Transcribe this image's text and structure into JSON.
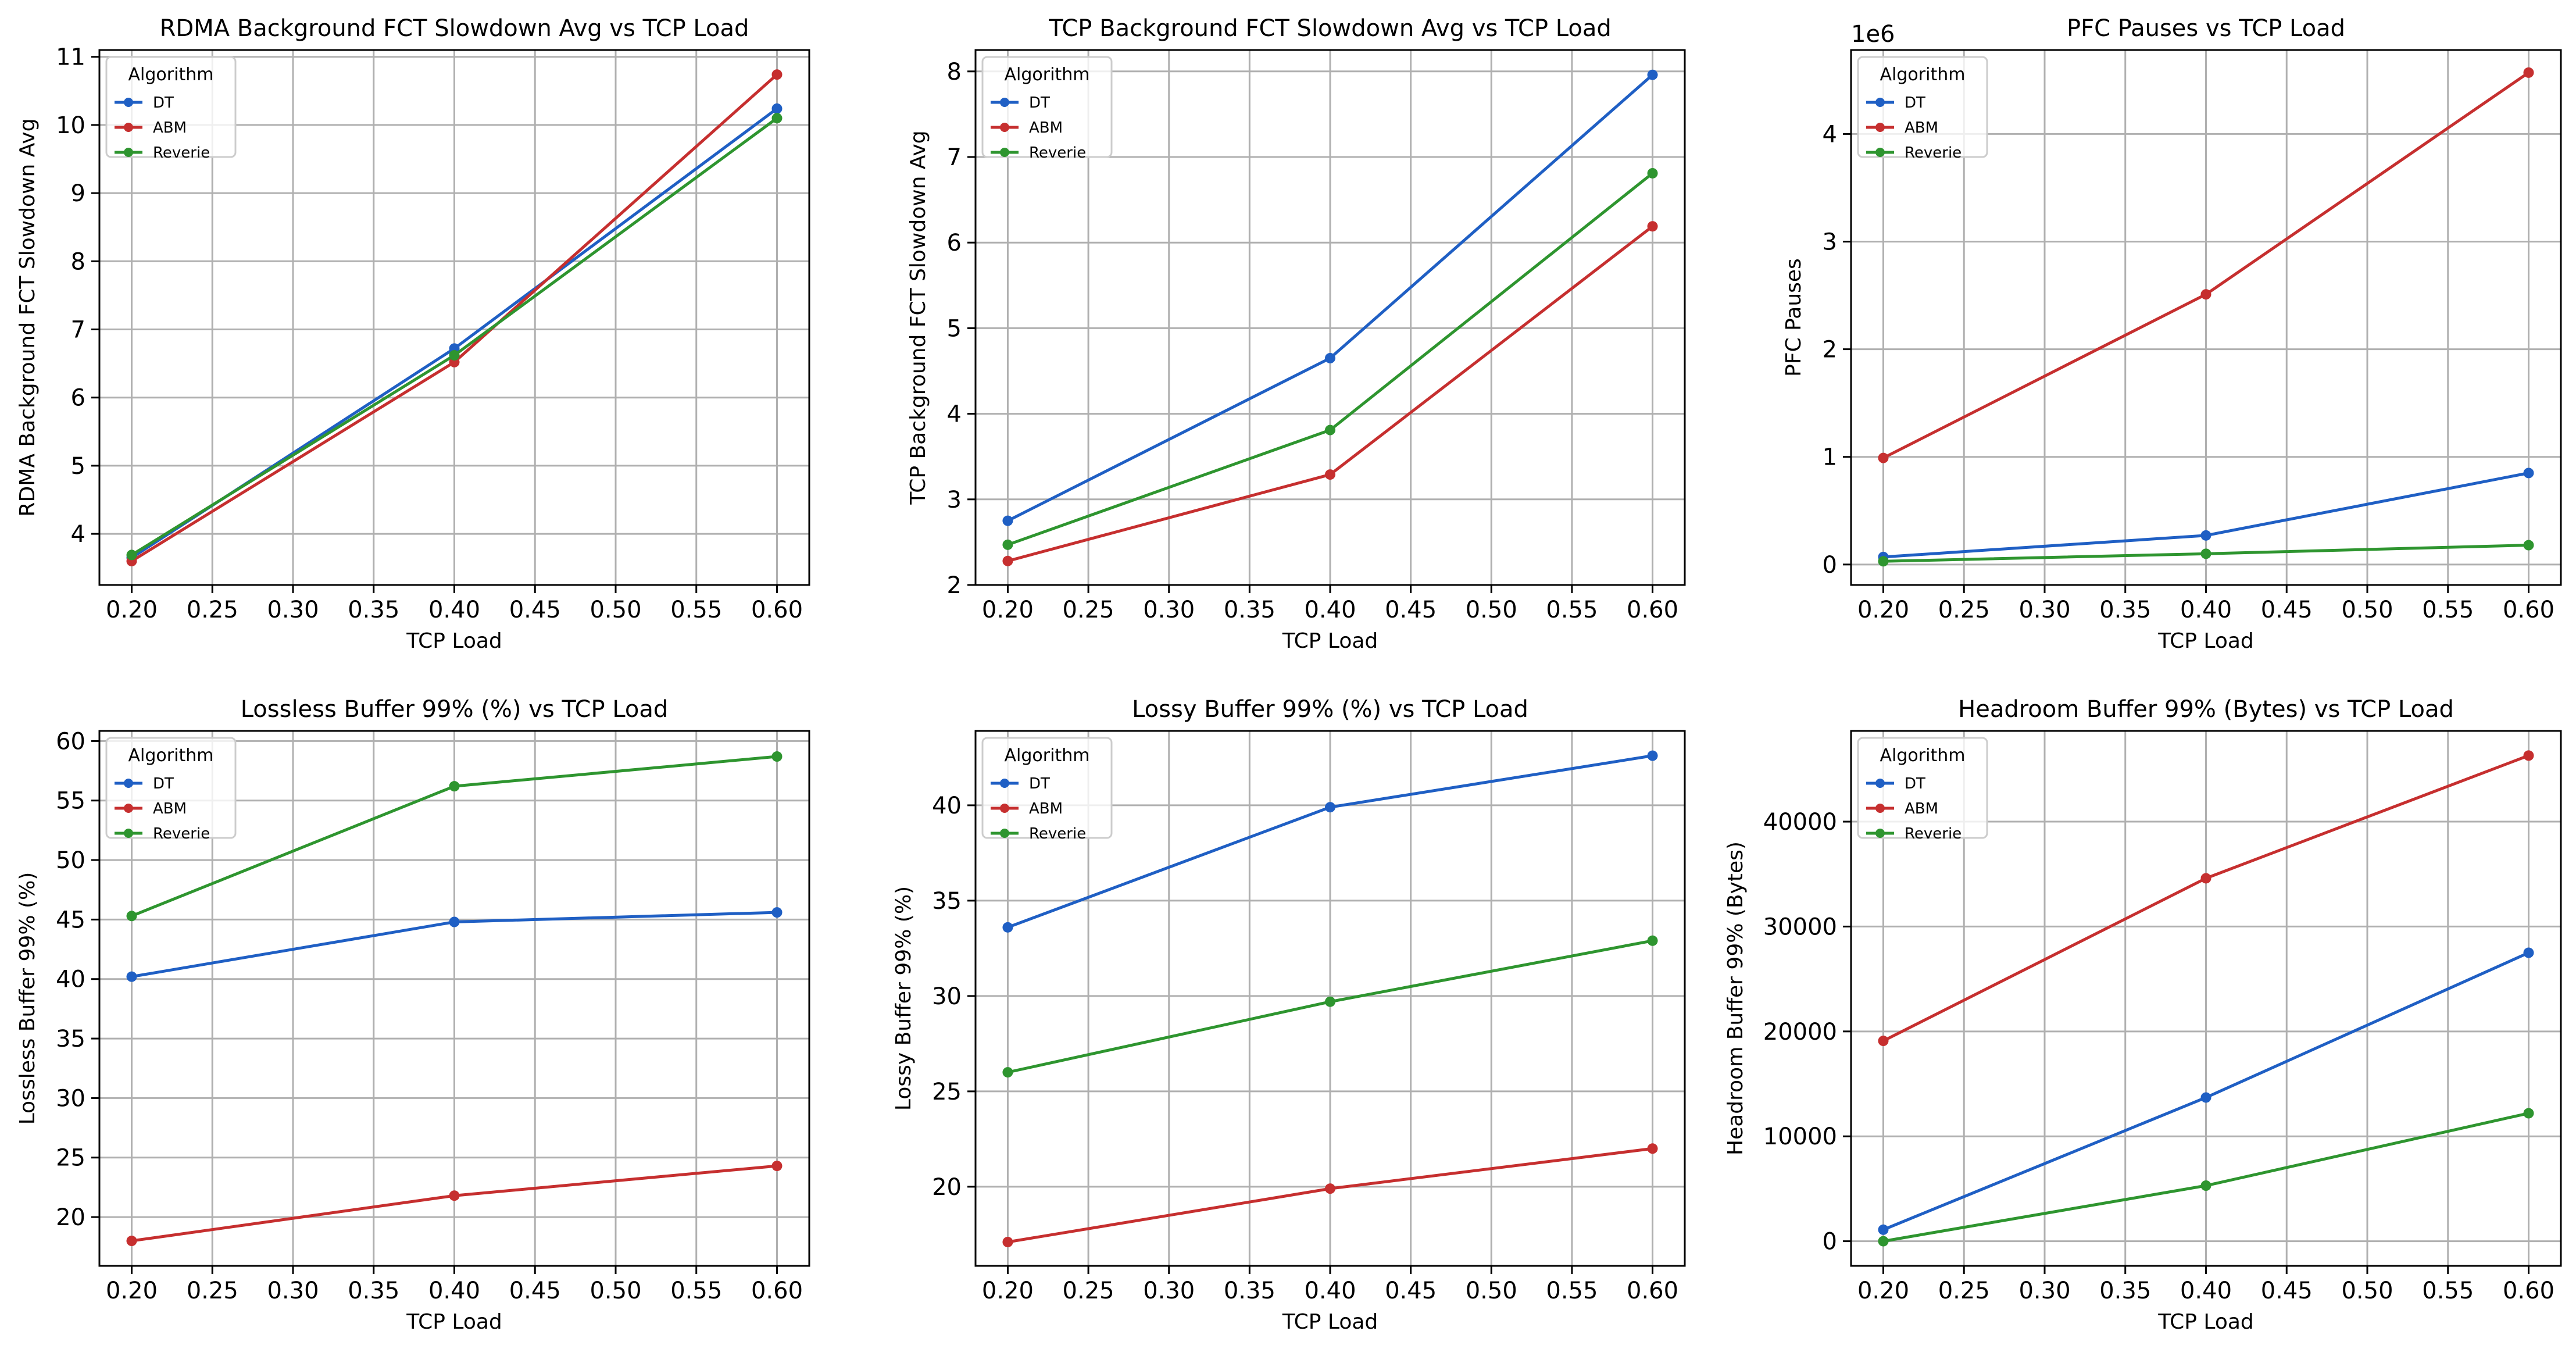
{
  "colors": {
    "DT": "#1f5fc4",
    "ABM": "#c62f2f",
    "Reverie": "#2e952f"
  },
  "chart_data": [
    {
      "type": "line",
      "title": "RDMA Background FCT Slowdown Avg vs TCP Load",
      "xlabel": "TCP Load",
      "ylabel": "RDMA Background FCT Slowdown Avg",
      "x": [
        0.2,
        0.4,
        0.6
      ],
      "xlim": [
        0.18,
        0.62
      ],
      "ylim": [
        3.25,
        11.1
      ],
      "xticks": [
        "0.20",
        "0.25",
        "0.30",
        "0.35",
        "0.40",
        "0.45",
        "0.50",
        "0.55",
        "0.60"
      ],
      "yticks": [
        "4",
        "5",
        "6",
        "7",
        "8",
        "9",
        "10",
        "11"
      ],
      "offset_text": "",
      "grid": true,
      "legend": {
        "title": "Algorithm",
        "loc": "upper left"
      },
      "series": [
        {
          "name": "DT",
          "values": [
            3.65,
            6.72,
            10.24
          ]
        },
        {
          "name": "ABM",
          "values": [
            3.6,
            6.52,
            10.74
          ]
        },
        {
          "name": "Reverie",
          "values": [
            3.69,
            6.62,
            10.1
          ]
        }
      ]
    },
    {
      "type": "line",
      "title": "TCP Background FCT Slowdown Avg vs TCP Load",
      "xlabel": "TCP Load",
      "ylabel": "TCP Background FCT Slowdown Avg",
      "x": [
        0.2,
        0.4,
        0.6
      ],
      "xlim": [
        0.18,
        0.62
      ],
      "ylim": [
        2.0,
        8.25
      ],
      "xticks": [
        "0.20",
        "0.25",
        "0.30",
        "0.35",
        "0.40",
        "0.45",
        "0.50",
        "0.55",
        "0.60"
      ],
      "yticks": [
        "2",
        "3",
        "4",
        "5",
        "6",
        "7",
        "8"
      ],
      "offset_text": "",
      "grid": true,
      "legend": {
        "title": "Algorithm",
        "loc": "upper left"
      },
      "series": [
        {
          "name": "DT",
          "values": [
            2.75,
            4.65,
            7.96
          ]
        },
        {
          "name": "ABM",
          "values": [
            2.28,
            3.29,
            6.19
          ]
        },
        {
          "name": "Reverie",
          "values": [
            2.47,
            3.81,
            6.81
          ]
        }
      ]
    },
    {
      "type": "line",
      "title": "PFC Pauses vs TCP Load",
      "xlabel": "TCP Load",
      "ylabel": "PFC Pauses",
      "x": [
        0.2,
        0.4,
        0.6
      ],
      "xlim": [
        0.18,
        0.62
      ],
      "ylim": [
        -190000,
        4780000
      ],
      "xticks": [
        "0.20",
        "0.25",
        "0.30",
        "0.35",
        "0.40",
        "0.45",
        "0.50",
        "0.55",
        "0.60"
      ],
      "yticks": [
        "0",
        "1",
        "2",
        "3",
        "4"
      ],
      "ytick_scale": 1000000,
      "offset_text": "1e6",
      "grid": true,
      "legend": {
        "title": "Algorithm",
        "loc": "upper left"
      },
      "series": [
        {
          "name": "DT",
          "values": [
            70000,
            270000,
            850000
          ]
        },
        {
          "name": "ABM",
          "values": [
            990000,
            2510000,
            4570000
          ]
        },
        {
          "name": "Reverie",
          "values": [
            30000,
            100000,
            180000
          ]
        }
      ]
    },
    {
      "type": "line",
      "title": "Lossless Buffer 99% (%) vs TCP Load",
      "xlabel": "TCP Load",
      "ylabel": "Lossless Buffer 99% (%)",
      "x": [
        0.2,
        0.4,
        0.6
      ],
      "xlim": [
        0.18,
        0.62
      ],
      "ylim": [
        15.9,
        60.85
      ],
      "xticks": [
        "0.20",
        "0.25",
        "0.30",
        "0.35",
        "0.40",
        "0.45",
        "0.50",
        "0.55",
        "0.60"
      ],
      "yticks": [
        "20",
        "25",
        "30",
        "35",
        "40",
        "45",
        "50",
        "55",
        "60"
      ],
      "offset_text": "",
      "grid": true,
      "legend": {
        "title": "Algorithm",
        "loc": "upper left"
      },
      "series": [
        {
          "name": "DT",
          "values": [
            40.2,
            44.8,
            45.6
          ]
        },
        {
          "name": "ABM",
          "values": [
            18.0,
            21.8,
            24.3
          ]
        },
        {
          "name": "Reverie",
          "values": [
            45.3,
            56.2,
            58.7
          ]
        }
      ]
    },
    {
      "type": "line",
      "title": "Lossy Buffer 99% (%) vs TCP Load",
      "xlabel": "TCP Load",
      "ylabel": "Lossy Buffer 99% (%)",
      "x": [
        0.2,
        0.4,
        0.6
      ],
      "xlim": [
        0.18,
        0.62
      ],
      "ylim": [
        15.85,
        43.9
      ],
      "xticks": [
        "0.20",
        "0.25",
        "0.30",
        "0.35",
        "0.40",
        "0.45",
        "0.50",
        "0.55",
        "0.60"
      ],
      "yticks": [
        "20",
        "25",
        "30",
        "35",
        "40"
      ],
      "offset_text": "",
      "grid": true,
      "legend": {
        "title": "Algorithm",
        "loc": "upper left"
      },
      "series": [
        {
          "name": "DT",
          "values": [
            33.6,
            39.9,
            42.6
          ]
        },
        {
          "name": "ABM",
          "values": [
            17.1,
            19.9,
            22.0
          ]
        },
        {
          "name": "Reverie",
          "values": [
            26.0,
            29.7,
            32.9
          ]
        }
      ]
    },
    {
      "type": "line",
      "title": "Headroom Buffer 99% (Bytes) vs TCP Load",
      "xlabel": "TCP Load",
      "ylabel": "Headroom Buffer 99% (Bytes)",
      "x": [
        0.2,
        0.4,
        0.6
      ],
      "xlim": [
        0.18,
        0.62
      ],
      "ylim": [
        -2350,
        48650
      ],
      "xticks": [
        "0.20",
        "0.25",
        "0.30",
        "0.35",
        "0.40",
        "0.45",
        "0.50",
        "0.55",
        "0.60"
      ],
      "yticks": [
        "0",
        "10000",
        "20000",
        "30000",
        "40000"
      ],
      "offset_text": "",
      "grid": true,
      "legend": {
        "title": "Algorithm",
        "loc": "upper left"
      },
      "series": [
        {
          "name": "DT",
          "values": [
            1100,
            13700,
            27500
          ]
        },
        {
          "name": "ABM",
          "values": [
            19100,
            34600,
            46300
          ]
        },
        {
          "name": "Reverie",
          "values": [
            0,
            5300,
            12200
          ]
        }
      ]
    }
  ]
}
